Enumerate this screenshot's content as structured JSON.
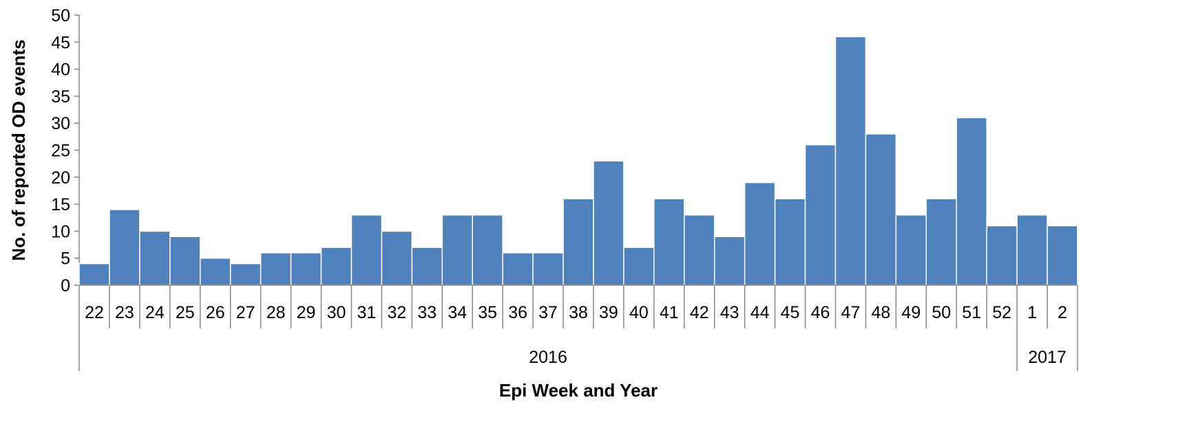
{
  "chart_data": {
    "type": "bar",
    "xlabel": "Epi Week and Year",
    "ylabel": "No. of reported OD events",
    "ylim": [
      0,
      50
    ],
    "yticks": [
      0,
      5,
      10,
      15,
      20,
      25,
      30,
      35,
      40,
      45,
      50
    ],
    "grid": false,
    "legend": "none",
    "bar_color": "#4F81BD",
    "categories": [
      "22",
      "23",
      "24",
      "25",
      "26",
      "27",
      "28",
      "29",
      "30",
      "31",
      "32",
      "33",
      "34",
      "35",
      "36",
      "37",
      "38",
      "39",
      "40",
      "41",
      "42",
      "43",
      "44",
      "45",
      "46",
      "47",
      "48",
      "49",
      "50",
      "51",
      "52",
      "1",
      "2"
    ],
    "category_groups": [
      {
        "label": "2016",
        "count": 31
      },
      {
        "label": "2017",
        "count": 2
      }
    ],
    "values": [
      4,
      14,
      10,
      9,
      5,
      4,
      6,
      6,
      7,
      13,
      10,
      7,
      13,
      13,
      6,
      6,
      16,
      23,
      7,
      16,
      13,
      9,
      19,
      16,
      26,
      46,
      28,
      13,
      16,
      31,
      11,
      13,
      11
    ]
  }
}
